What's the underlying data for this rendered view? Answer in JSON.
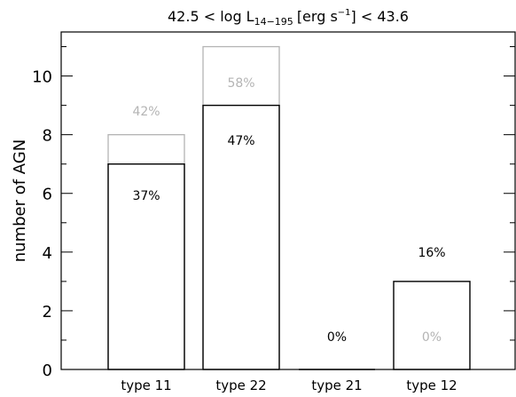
{
  "chart_data": {
    "type": "bar",
    "title": {
      "prefix": "42.5 < log L",
      "subscript": "14−195",
      "unit_open": "[erg s",
      "superscript": "−1",
      "suffix": "] < 43.6"
    },
    "xlabel": "",
    "ylabel": "number of AGN",
    "ylim": [
      0,
      11.5
    ],
    "yticks": [
      0,
      2,
      4,
      6,
      8,
      10
    ],
    "categories": [
      "type 11",
      "type 22",
      "type 21",
      "type 12"
    ],
    "series": [
      {
        "values": [
          8,
          11,
          0,
          0
        ],
        "labels": [
          "42%",
          "58%",
          "",
          "0%"
        ],
        "color": "#b4b4b4"
      },
      {
        "values": [
          7,
          9,
          0,
          3
        ],
        "labels": [
          "37%",
          "47%",
          "0%",
          "16%"
        ],
        "color": "#000000"
      }
    ],
    "grid": false,
    "legend": "none"
  }
}
